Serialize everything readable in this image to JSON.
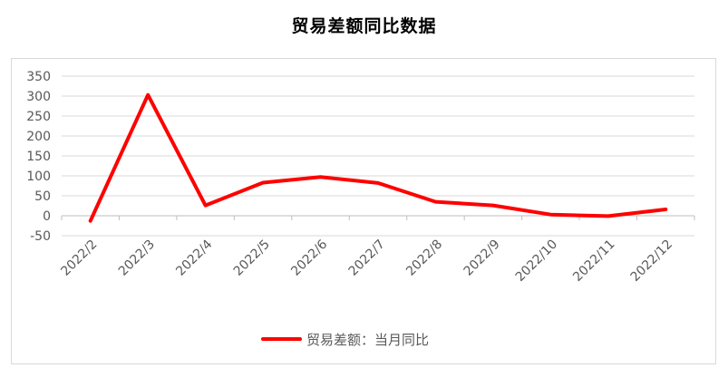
{
  "chart_data": {
    "type": "line",
    "title": "贸易差额同比数据",
    "categories": [
      "2022/2",
      "2022/3",
      "2022/4",
      "2022/5",
      "2022/6",
      "2022/7",
      "2022/8",
      "2022/9",
      "2022/10",
      "2022/11",
      "2022/12"
    ],
    "series": [
      {
        "name": "贸易差额：当月同比",
        "color": "#ff0000",
        "values": [
          -13,
          303,
          26,
          83,
          97,
          82,
          35,
          26,
          3,
          -1,
          16
        ]
      }
    ],
    "yticks": [
      "-50",
      "0",
      "50",
      "100",
      "150",
      "200",
      "250",
      "300",
      "350"
    ],
    "ylim": [
      -50,
      350
    ],
    "grid": true,
    "legend_position": "bottom",
    "xlabel": "",
    "ylabel": ""
  }
}
